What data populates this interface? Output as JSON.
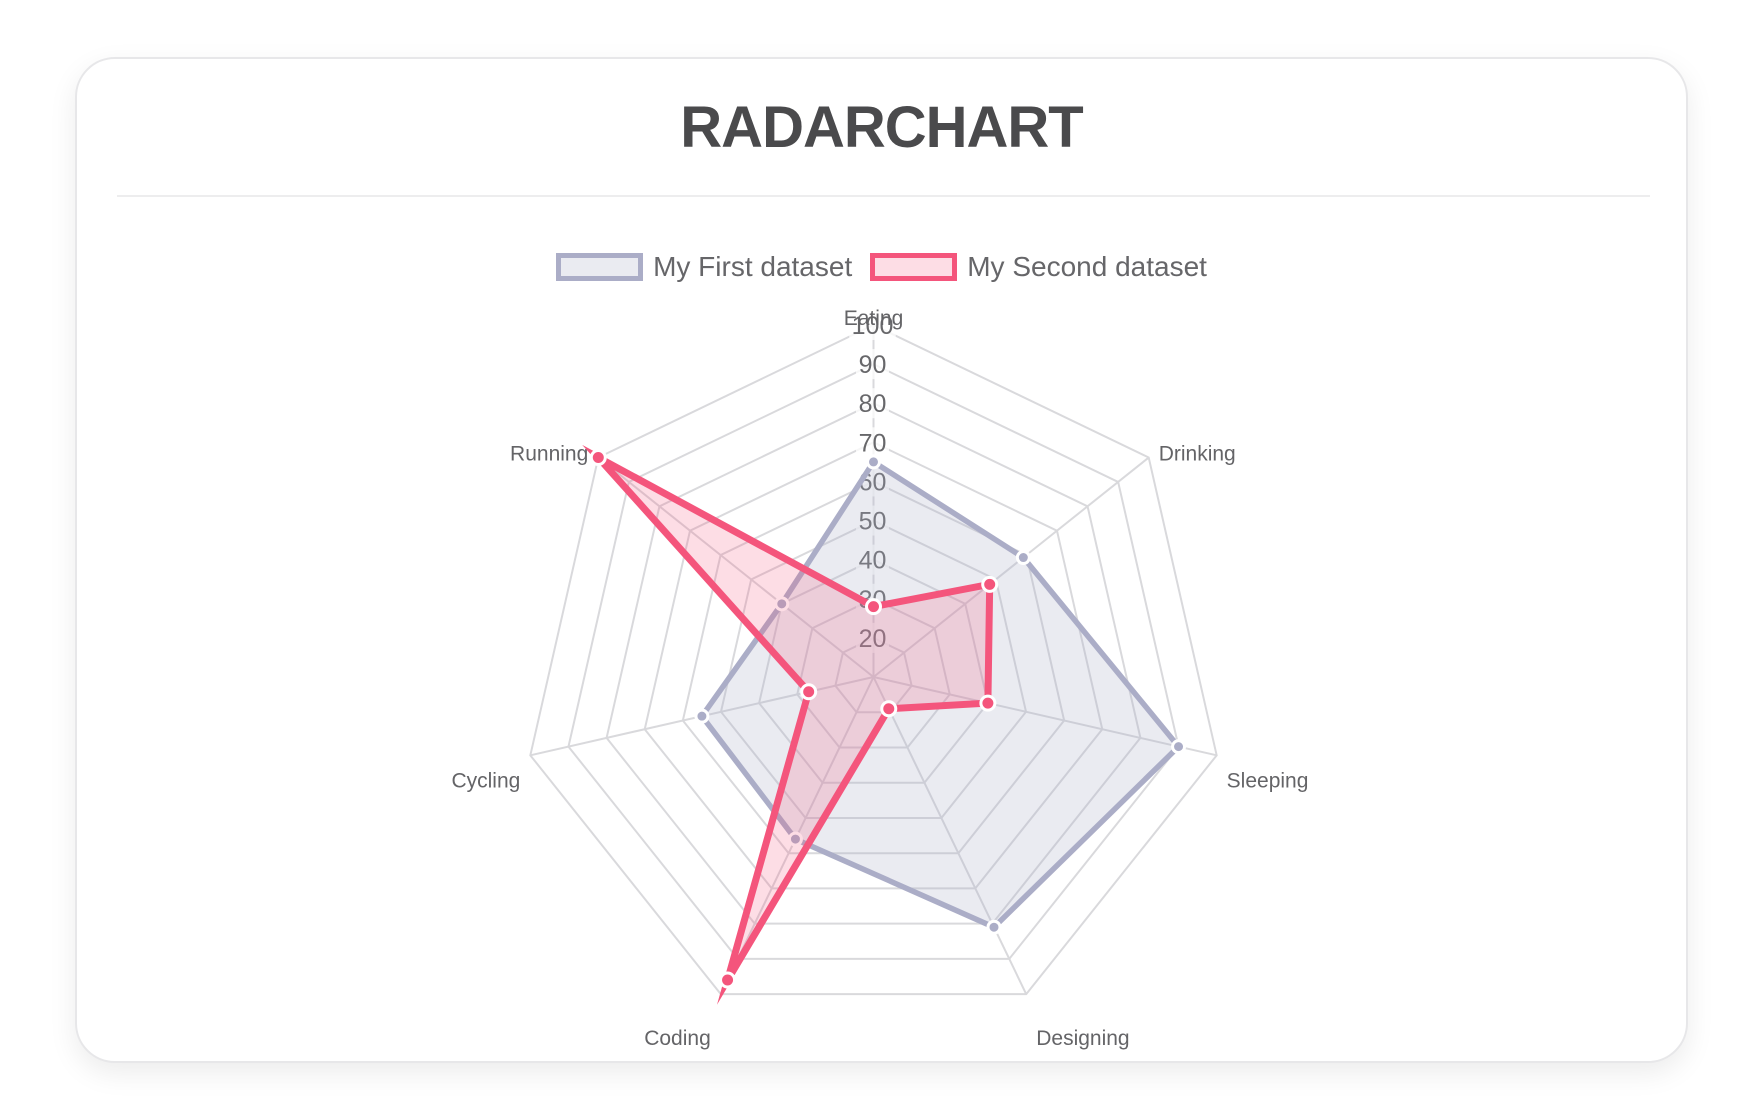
{
  "title": "RADARCHART",
  "legend": {
    "items": [
      {
        "label": "My First dataset"
      },
      {
        "label": "My Second dataset"
      }
    ]
  },
  "chart_data": {
    "type": "radar",
    "title": "RADARCHART",
    "categories": [
      "Eating",
      "Drinking",
      "Sleeping",
      "Designing",
      "Coding",
      "Cycling",
      "Running"
    ],
    "series": [
      {
        "name": "My First dataset",
        "values": [
          65,
          59,
          90,
          81,
          56,
          55,
          40
        ],
        "border_color": "#abadc7",
        "fill_color": "rgba(173,175,199,0.25)",
        "point_border_color": "#ffffff"
      },
      {
        "name": "My Second dataset",
        "values": [
          28,
          48,
          40,
          19,
          96,
          27,
          100
        ],
        "border_color": "#f4557c",
        "fill_color": "rgba(244,85,124,0.2)",
        "point_border_color": "#ffffff"
      }
    ],
    "scale": {
      "min": 10,
      "max": 100,
      "step": 10,
      "tick_labels": [
        "20",
        "30",
        "40",
        "50",
        "60",
        "70",
        "80",
        "90",
        "100"
      ]
    },
    "grid": true,
    "legend_position": "top",
    "grid_color": "#d9d9dc",
    "tick_label_color": "#67676a",
    "axis_label_color": "#646467",
    "tick_backdrop_color": "rgba(255,255,255,0.75)"
  }
}
